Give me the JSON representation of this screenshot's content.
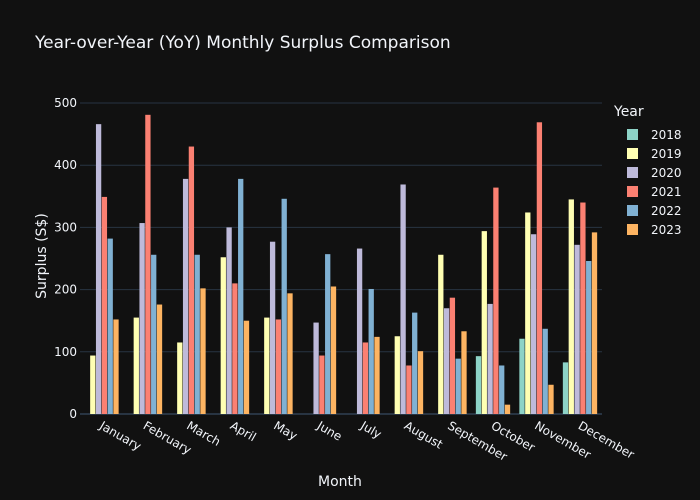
{
  "chart_data": {
    "type": "bar",
    "title": "Year-over-Year (YoY) Monthly Surplus Comparison",
    "xlabel": "Month",
    "ylabel": "Surplus (S$)",
    "ylim": [
      0,
      500
    ],
    "yticks": [
      0,
      100,
      200,
      300,
      400,
      500
    ],
    "grid": true,
    "legend_title": "Year",
    "legend_position": "right",
    "categories": [
      "January",
      "February",
      "March",
      "April",
      "May",
      "June",
      "July",
      "August",
      "September",
      "October",
      "November",
      "December"
    ],
    "series": [
      {
        "name": "2018",
        "color": "#8dd3c7",
        "values": [
          null,
          null,
          null,
          null,
          null,
          null,
          null,
          null,
          null,
          93,
          121,
          83
        ]
      },
      {
        "name": "2019",
        "color": "#ffffb3",
        "values": [
          94,
          155,
          115,
          252,
          155,
          null,
          null,
          125,
          256,
          294,
          324,
          345
        ]
      },
      {
        "name": "2020",
        "color": "#bebada",
        "values": [
          466,
          307,
          378,
          300,
          277,
          147,
          266,
          369,
          170,
          177,
          289,
          272
        ]
      },
      {
        "name": "2021",
        "color": "#fb8072",
        "values": [
          349,
          481,
          430,
          210,
          152,
          94,
          115,
          78,
          187,
          364,
          469,
          340
        ]
      },
      {
        "name": "2022",
        "color": "#80b1d3",
        "values": [
          282,
          256,
          256,
          378,
          346,
          257,
          201,
          163,
          89,
          78,
          137,
          246
        ]
      },
      {
        "name": "2023",
        "color": "#fdb462",
        "values": [
          152,
          176,
          202,
          150,
          194,
          205,
          124,
          101,
          133,
          15,
          47,
          292
        ]
      }
    ]
  },
  "colors": {
    "background": "#111111",
    "grid": "#283442",
    "text": "#f2f5fa"
  }
}
